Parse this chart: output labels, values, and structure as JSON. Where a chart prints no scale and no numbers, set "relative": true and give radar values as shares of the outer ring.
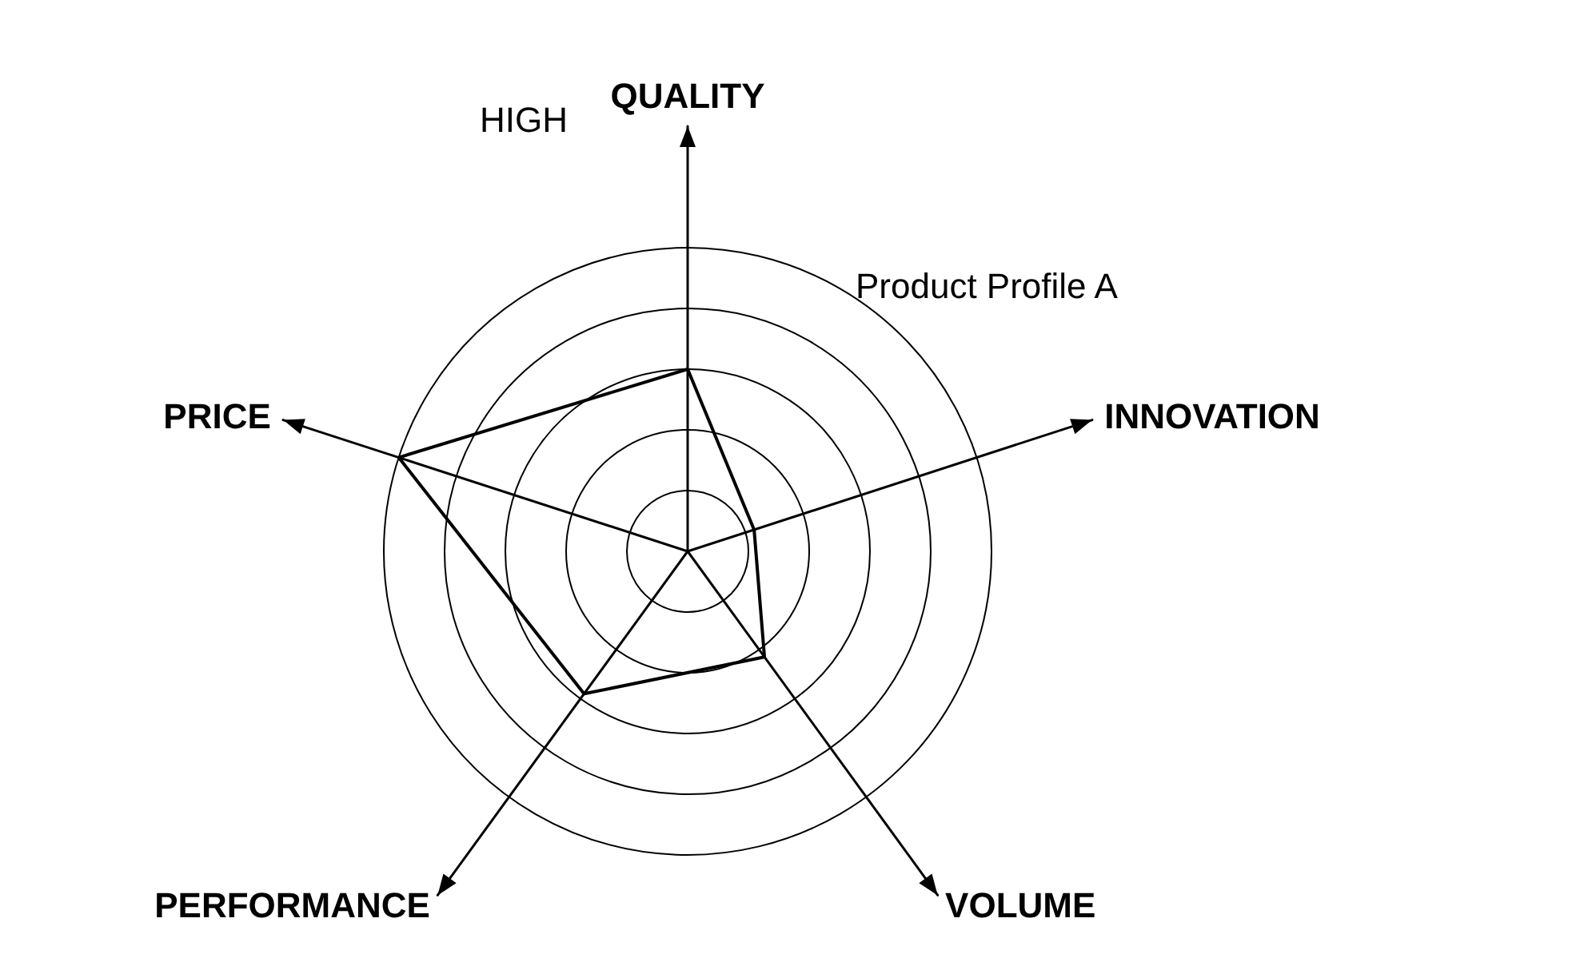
{
  "chart_data": {
    "type": "radar",
    "relative": true,
    "categories": [
      "QUALITY",
      "INNOVATION",
      "VOLUME",
      "PERFORMANCE",
      "PRICE"
    ],
    "series": [
      {
        "name": "Product Profile A",
        "color": "#000000",
        "values": [
          0.6,
          0.23,
          0.43,
          0.58,
          1.0
        ]
      }
    ],
    "annotations": [
      "HIGH"
    ],
    "marker": "none",
    "line_style": "solid",
    "grid": true,
    "legend": false
  }
}
